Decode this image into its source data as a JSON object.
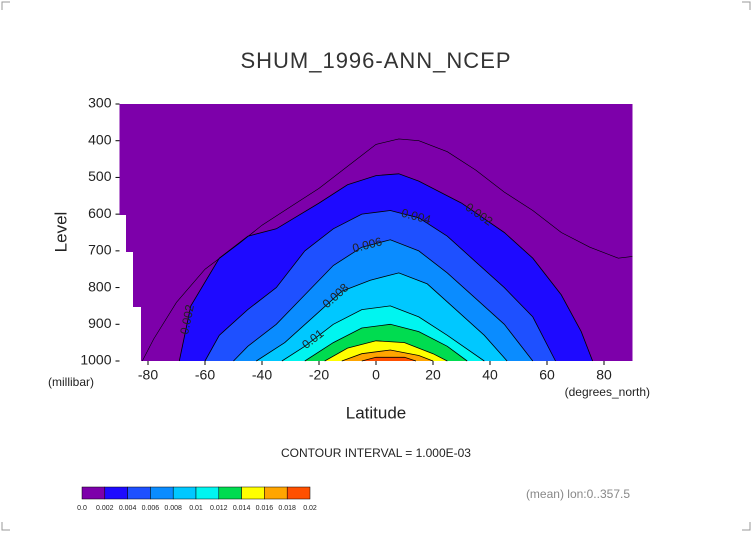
{
  "chart_data": {
    "type": "contour",
    "title": "SHUM_1996-ANN_NCEP",
    "xlabel": "Latitude",
    "xunit": "(degrees_north)",
    "ylabel": "Level",
    "yunit": "(millibar)",
    "annotation": "CONTOUR INTERVAL = 1.000E-03",
    "footnote": "(mean) lon:0..357.5",
    "xlim": [
      -90,
      90
    ],
    "ylim": [
      1000,
      300
    ],
    "xticks": [
      -80,
      -60,
      -40,
      -20,
      0,
      20,
      40,
      60,
      80
    ],
    "yticks": [
      300,
      400,
      500,
      600,
      700,
      800,
      900,
      1000
    ],
    "line_level": {
      "level": 0.001,
      "x": [
        -82,
        -78,
        -70,
        -60,
        -48,
        -40,
        -30,
        -20,
        -10,
        0,
        8,
        15,
        25,
        35,
        45,
        55,
        65,
        75,
        85,
        90
      ],
      "y": [
        1000,
        940,
        840,
        750,
        680,
        630,
        580,
        530,
        470,
        410,
        395,
        400,
        430,
        480,
        540,
        590,
        650,
        690,
        720,
        715
      ]
    },
    "contours": [
      {
        "level": 0.002,
        "color": "#1e0aff",
        "x": [
          -69,
          -65,
          -55,
          -45,
          -35,
          -20,
          -10,
          0,
          8,
          15,
          30,
          45,
          55,
          65,
          72,
          76
        ],
        "y": [
          1000,
          850,
          720,
          660,
          640,
          570,
          520,
          495,
          490,
          510,
          570,
          650,
          720,
          820,
          920,
          1000
        ]
      },
      {
        "level": 0.004,
        "color": "#1e50ff",
        "x": [
          -60,
          -55,
          -45,
          -35,
          -25,
          -15,
          -5,
          5,
          15,
          25,
          35,
          45,
          55,
          63
        ],
        "y": [
          1000,
          930,
          860,
          800,
          700,
          640,
          600,
          590,
          610,
          660,
          730,
          800,
          880,
          1000
        ]
      },
      {
        "level": 0.006,
        "color": "#0a8cff",
        "x": [
          -50,
          -45,
          -35,
          -25,
          -15,
          -5,
          5,
          15,
          25,
          35,
          45,
          55
        ],
        "y": [
          1000,
          960,
          900,
          820,
          740,
          690,
          670,
          700,
          760,
          830,
          900,
          1000
        ]
      },
      {
        "level": 0.008,
        "color": "#00c8ff",
        "x": [
          -42,
          -32,
          -22,
          -12,
          -2,
          8,
          18,
          28,
          38,
          46
        ],
        "y": [
          1000,
          950,
          880,
          810,
          780,
          760,
          790,
          860,
          930,
          1000
        ]
      },
      {
        "level": 0.01,
        "color": "#00f5f0",
        "x": [
          -33,
          -25,
          -15,
          -5,
          5,
          15,
          25,
          38
        ],
        "y": [
          1000,
          960,
          900,
          860,
          850,
          880,
          930,
          1000
        ]
      },
      {
        "level": 0.012,
        "color": "#00dc50",
        "x": [
          -25,
          -15,
          -5,
          5,
          15,
          25,
          32
        ],
        "y": [
          1000,
          950,
          910,
          900,
          920,
          960,
          1000
        ]
      },
      {
        "level": 0.014,
        "color": "#ffff00",
        "x": [
          -18,
          -10,
          0,
          10,
          20,
          25
        ],
        "y": [
          1000,
          965,
          945,
          950,
          980,
          1000
        ]
      },
      {
        "level": 0.016,
        "color": "#ffa500",
        "x": [
          -12,
          -5,
          5,
          15,
          20
        ],
        "y": [
          1000,
          980,
          970,
          985,
          1000
        ]
      },
      {
        "level": 0.018,
        "color": "#ff5000",
        "x": [
          -5,
          0,
          10,
          14
        ],
        "y": [
          1000,
          990,
          990,
          1000
        ]
      }
    ],
    "colorbar": {
      "levels": [
        {
          "value": 0,
          "label": "0.0"
        },
        0.002,
        0.004,
        0.006,
        0.008,
        0.01,
        0.012,
        0.014,
        0.016,
        0.018,
        0.02
      ],
      "colors": [
        "#7d00aa",
        "#1e0aff",
        "#1e50ff",
        "#0a8cff",
        "#00c8ff",
        "#00f5f0",
        "#00dc50",
        "#ffff00",
        "#ffa500",
        "#ff5000"
      ]
    }
  }
}
